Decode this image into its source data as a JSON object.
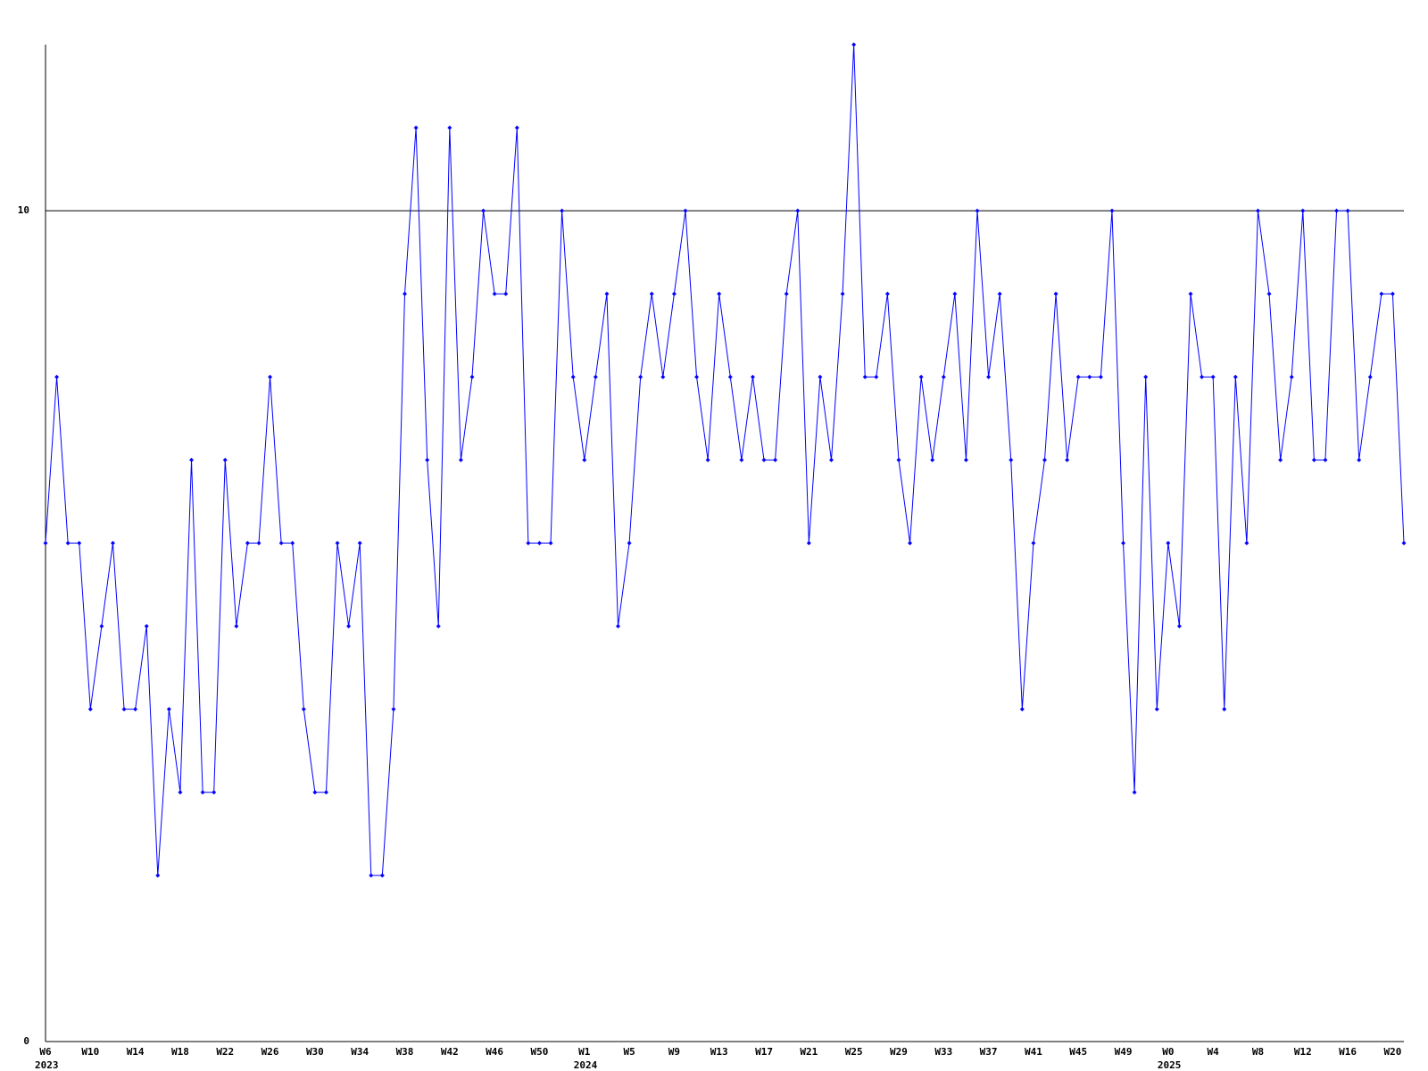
{
  "chart_data": {
    "type": "line",
    "categories": [
      "W6",
      null,
      null,
      null,
      "W10",
      null,
      null,
      null,
      "W14",
      null,
      null,
      null,
      "W18",
      null,
      null,
      null,
      "W22",
      null,
      null,
      null,
      "W26",
      null,
      null,
      null,
      "W30",
      null,
      null,
      null,
      "W34",
      null,
      null,
      null,
      "W38",
      null,
      null,
      null,
      "W42",
      null,
      null,
      null,
      "W46",
      null,
      null,
      null,
      "W50",
      null,
      null,
      null,
      "W1",
      null,
      null,
      null,
      "W5",
      null,
      null,
      null,
      "W9",
      null,
      null,
      null,
      "W13",
      null,
      null,
      null,
      "W17",
      null,
      null,
      null,
      "W21",
      null,
      null,
      null,
      "W25",
      null,
      null,
      null,
      "W29",
      null,
      null,
      null,
      "W33",
      null,
      null,
      null,
      "W37",
      null,
      null,
      null,
      "W41",
      null,
      null,
      null,
      "W45",
      null,
      null,
      null,
      "W49",
      null,
      null,
      null,
      "W0",
      null,
      null,
      null,
      "W4",
      null,
      null,
      null,
      "W8",
      null,
      null,
      null,
      "W12",
      null,
      null,
      null,
      "W16",
      null,
      null,
      null,
      "W20",
      null
    ],
    "year_labels": [
      "2023",
      null,
      null,
      null,
      null,
      null,
      null,
      null,
      null,
      null,
      null,
      null,
      null,
      null,
      null,
      null,
      null,
      null,
      null,
      null,
      null,
      null,
      null,
      null,
      null,
      null,
      null,
      null,
      null,
      null,
      null,
      null,
      null,
      null,
      null,
      null,
      null,
      null,
      null,
      null,
      null,
      null,
      null,
      null,
      null,
      null,
      null,
      null,
      "2024",
      null,
      null,
      null,
      null,
      null,
      null,
      null,
      null,
      null,
      null,
      null,
      null,
      null,
      null,
      null,
      null,
      null,
      null,
      null,
      null,
      null,
      null,
      null,
      null,
      null,
      null,
      null,
      null,
      null,
      null,
      null,
      null,
      null,
      null,
      null,
      null,
      null,
      null,
      null,
      null,
      null,
      null,
      null,
      null,
      null,
      null,
      null,
      null,
      null,
      null,
      null,
      "2025",
      null,
      null,
      null,
      null,
      null,
      null,
      null,
      null,
      null,
      null,
      null,
      null,
      null,
      null,
      null,
      null,
      null,
      null,
      null,
      null,
      null
    ],
    "series": [
      {
        "color": "#0000ff",
        "values": [
          6,
          8,
          6,
          6,
          4,
          5,
          6,
          4,
          4,
          5,
          2,
          4,
          3,
          7,
          3,
          3,
          7,
          5,
          6,
          6,
          8,
          6,
          6,
          4,
          3,
          3,
          6,
          5,
          6,
          2,
          2,
          4,
          9,
          11,
          7,
          5,
          11,
          7,
          8,
          10,
          9,
          9,
          11,
          6,
          6,
          6,
          10,
          8,
          7,
          8,
          9,
          5,
          6,
          8,
          9,
          8,
          9,
          10,
          8,
          7,
          9,
          8,
          7,
          8,
          7,
          7,
          9,
          10,
          6,
          8,
          7,
          9,
          12,
          8,
          8,
          9,
          7,
          6,
          8,
          7,
          8,
          9,
          7,
          10,
          8,
          9,
          7,
          4,
          6,
          7,
          9,
          7,
          8,
          8,
          8,
          10,
          6,
          3,
          8,
          4,
          6,
          5,
          9,
          8,
          8,
          4,
          8,
          6,
          10,
          9,
          7,
          8,
          10,
          7,
          7,
          10,
          10,
          7,
          8,
          9,
          9,
          6
        ]
      }
    ],
    "ylim": [
      0,
      12
    ],
    "yticks": [
      0,
      10
    ],
    "grid": true
  }
}
